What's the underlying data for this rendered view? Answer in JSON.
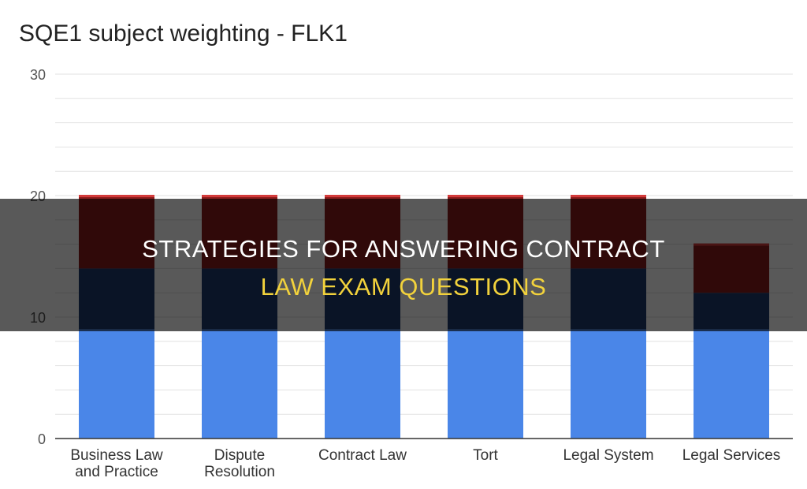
{
  "chart_data": {
    "type": "bar",
    "stacked": true,
    "title": "SQE1 subject weighting - FLK1",
    "categories": [
      "Business Law and Practice",
      "Dispute Resolution",
      "Contract Law",
      "Tort",
      "Legal System",
      "Legal Services"
    ],
    "series": [
      {
        "values": [
          9,
          9,
          9,
          9,
          9,
          9
        ],
        "color": "#4a86e8"
      },
      {
        "values": [
          5,
          5,
          5,
          5,
          5,
          3
        ],
        "color": "#1f3a6e"
      },
      {
        "values": [
          6,
          6,
          6,
          6,
          6,
          4
        ],
        "color": "#8b1c1c"
      }
    ],
    "ylim": [
      0,
      30
    ],
    "yticks": [
      0,
      10,
      20,
      30
    ],
    "grid": true
  },
  "overlay": {
    "line1": "STRATEGIES FOR ANSWERING CONTRACT",
    "line2": "LAW EXAM QUESTIONS"
  },
  "colors": {
    "grid": "#e2e2e2",
    "axis": "#333333",
    "tick_text": "#555555",
    "cap": "#d33b3b",
    "overlay_accent": "#f2d23c"
  }
}
